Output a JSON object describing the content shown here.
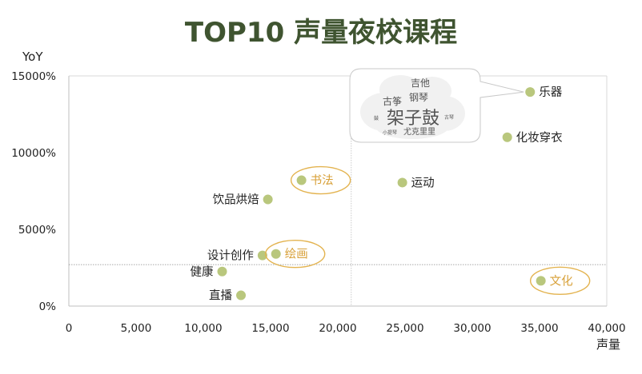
{
  "chart_data": {
    "type": "scatter",
    "title": "TOP10 声量夜校课程",
    "xlabel": "声量",
    "ylabel": "YoY",
    "xlim": [
      0,
      40000
    ],
    "ylim": [
      0,
      15000
    ],
    "x_ticks": [
      "0",
      "5,000",
      "10,000",
      "15,000",
      "20,000",
      "25,000",
      "30,000",
      "35,000",
      "40,000"
    ],
    "y_ticks": [
      "0%",
      "5000%",
      "10000%",
      "15000%"
    ],
    "reference_lines": {
      "x": 21000,
      "y": 2700
    },
    "points_color": "#b9c77d",
    "highlight_color": "#e3b34f",
    "points": [
      {
        "name": "乐器",
        "x": 34300,
        "y": 13950,
        "label_side": "right",
        "highlight": false
      },
      {
        "name": "化妆穿衣",
        "x": 32600,
        "y": 11000,
        "label_side": "right",
        "highlight": false
      },
      {
        "name": "运动",
        "x": 24800,
        "y": 8050,
        "label_side": "right",
        "highlight": false
      },
      {
        "name": "书法",
        "x": 17300,
        "y": 8200,
        "label_side": "right",
        "highlight": true
      },
      {
        "name": "饮品烘焙",
        "x": 14800,
        "y": 6950,
        "label_side": "left",
        "highlight": false
      },
      {
        "name": "设计创作",
        "x": 14400,
        "y": 3300,
        "label_side": "left",
        "highlight": false
      },
      {
        "name": "绘画",
        "x": 15400,
        "y": 3400,
        "label_side": "right",
        "highlight": true
      },
      {
        "name": "健康",
        "x": 11400,
        "y": 2250,
        "label_side": "left",
        "highlight": false
      },
      {
        "name": "直播",
        "x": 12800,
        "y": 700,
        "label_side": "left",
        "highlight": false
      },
      {
        "name": "文化",
        "x": 35100,
        "y": 1650,
        "label_side": "right",
        "highlight": true
      }
    ],
    "word_cloud": {
      "anchor": "乐器",
      "words": [
        {
          "text": "吉他",
          "size": "medium"
        },
        {
          "text": "钢琴",
          "size": "medium"
        },
        {
          "text": "古筝",
          "size": "medium"
        },
        {
          "text": "架子鼓",
          "size": "large"
        },
        {
          "text": "尤克里里",
          "size": "small"
        },
        {
          "text": "古琴",
          "size": "tiny"
        },
        {
          "text": "小提琴",
          "size": "tiny"
        },
        {
          "text": "鼓",
          "size": "tiny"
        }
      ]
    }
  }
}
